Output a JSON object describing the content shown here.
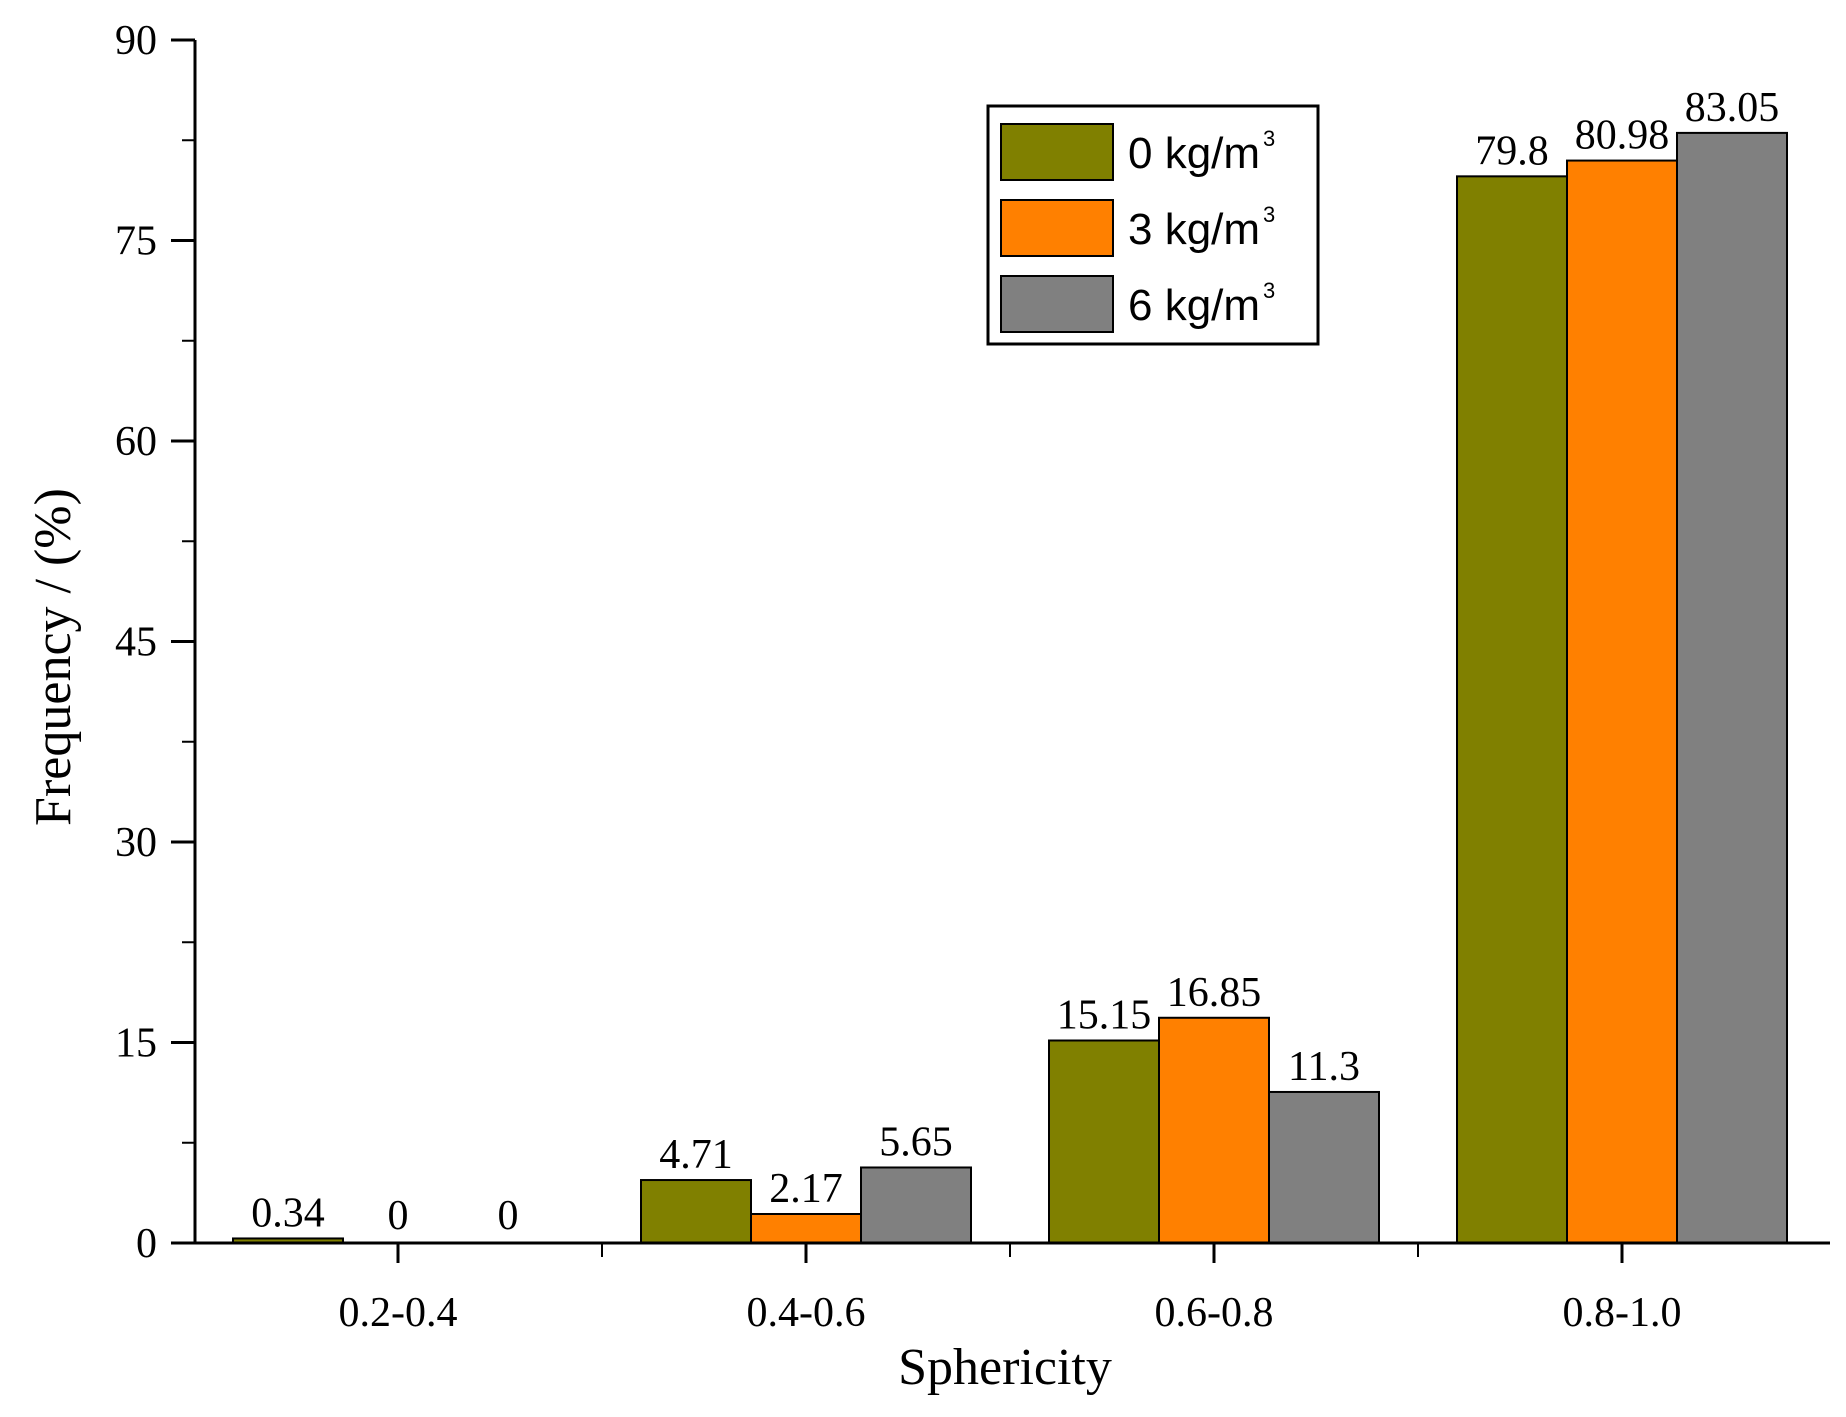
{
  "chart_data": {
    "type": "bar",
    "title": "",
    "xlabel": "Sphericity",
    "ylabel": "Frequency / (%)",
    "ylim": [
      0,
      90
    ],
    "yticks": [
      "0",
      "15",
      "30",
      "45",
      "60",
      "75",
      "90"
    ],
    "categories": [
      "0.2-0.4",
      "0.4-0.6",
      "0.6-0.8",
      "0.8-1.0"
    ],
    "series": [
      {
        "name": "0 kg/m",
        "sup": "3",
        "color": "#808000",
        "values": [
          0.34,
          4.71,
          15.15,
          79.8
        ],
        "labels": [
          "0.34",
          "4.71",
          "15.15",
          "79.8"
        ]
      },
      {
        "name": "3 kg/m",
        "sup": "3",
        "color": "#ff8000",
        "values": [
          0,
          2.17,
          16.85,
          80.98
        ],
        "labels": [
          "0",
          "2.17",
          "16.85",
          "80.98"
        ]
      },
      {
        "name": "6 kg/m",
        "sup": "3",
        "color": "#808080",
        "values": [
          0,
          5.65,
          11.3,
          83.05
        ],
        "labels": [
          "0",
          "5.65",
          "11.3",
          "83.05"
        ]
      }
    ],
    "legend_position": "top-right",
    "grid": false
  }
}
